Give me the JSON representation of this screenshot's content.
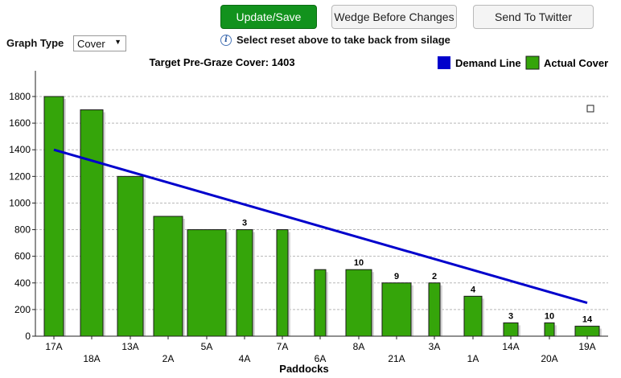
{
  "buttons": {
    "update_save": "Update/Save",
    "wedge_before": "Wedge Before Changes",
    "twitter": "Send To Twitter"
  },
  "hint": {
    "icon": "info-icon",
    "text": "Select reset above to take back from silage"
  },
  "graph_type": {
    "label": "Graph Type",
    "selected": "Cover"
  },
  "colors": {
    "demand_line": "#0000cc",
    "bar_fill": "#35a50a",
    "primary_button": "#12921d"
  },
  "chart_data": {
    "type": "bar",
    "title": "Target Pre-Graze Cover: 1403",
    "xlabel": "Paddocks",
    "ylabel": "",
    "ylim": [
      0,
      1800
    ],
    "yticks": [
      0,
      200,
      400,
      600,
      800,
      1000,
      1200,
      1400,
      1600,
      1800
    ],
    "grid": true,
    "legend_placement": "top-right",
    "categories": [
      "17A",
      "18A",
      "13A",
      "2A",
      "5A",
      "4A",
      "7A",
      "6A",
      "8A",
      "21A",
      "3A",
      "1A",
      "14A",
      "20A",
      "19A"
    ],
    "series": [
      {
        "name": "Actual Cover",
        "values": [
          1800,
          1700,
          1200,
          900,
          800,
          800,
          800,
          500,
          500,
          400,
          400,
          300,
          100,
          100,
          75
        ],
        "data_labels": [
          "",
          "",
          "",
          "",
          "",
          "3",
          "",
          "",
          "10",
          "9",
          "2",
          "4",
          "3",
          "10",
          "14"
        ]
      },
      {
        "name": "Demand Line",
        "type": "line",
        "points": [
          {
            "category": "17A",
            "value": 1400
          },
          {
            "category": "19A",
            "value": 250
          }
        ]
      }
    ]
  }
}
